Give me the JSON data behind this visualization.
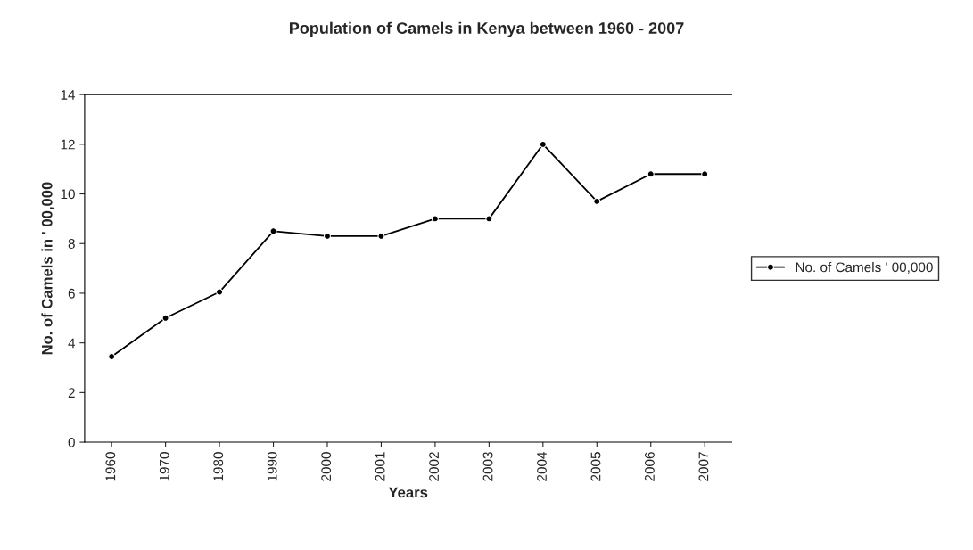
{
  "chart_data": {
    "type": "line",
    "title": "Population of Camels in Kenya between 1960 - 2007",
    "xlabel": "Years",
    "ylabel": "No. of Camels in ' 00,000",
    "categories": [
      "1960",
      "1970",
      "1980",
      "1990",
      "2000",
      "2001",
      "2002",
      "2003",
      "2004",
      "2005",
      "2006",
      "2007"
    ],
    "series": [
      {
        "name": "No. of Camels ' 00,000",
        "color": "#000000",
        "values": [
          3.45,
          5.0,
          6.05,
          8.5,
          8.3,
          8.3,
          9.0,
          9.0,
          12.0,
          9.7,
          10.8,
          10.8
        ]
      }
    ],
    "ylim": [
      0,
      14
    ],
    "yticks": [
      0,
      2,
      4,
      6,
      8,
      10,
      12,
      14
    ],
    "grid": false,
    "legend": "right",
    "marker": "circle",
    "line_style": "solid"
  }
}
